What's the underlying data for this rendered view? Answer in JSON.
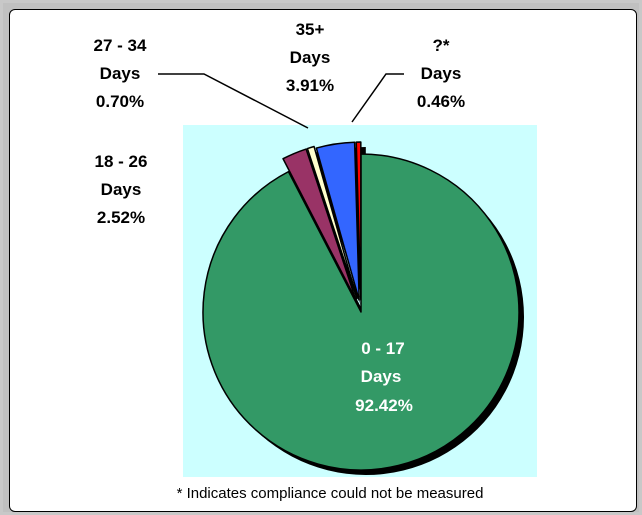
{
  "chart_data": {
    "type": "pie",
    "categories": [
      "0 - 17 Days",
      "18 - 26 Days",
      "27 - 34 Days",
      "35+ Days",
      "?* Days"
    ],
    "values": [
      92.42,
      2.52,
      0.7,
      3.91,
      0.46
    ],
    "slices": [
      {
        "line1": "0 - 17",
        "line2": "Days",
        "pct": "92.42%",
        "value": 92.42,
        "color": "#339966"
      },
      {
        "line1": "18 - 26",
        "line2": "Days",
        "pct": "2.52%",
        "value": 2.52,
        "color": "#993366"
      },
      {
        "line1": "27 - 34",
        "line2": "Days",
        "pct": "0.70%",
        "value": 0.7,
        "color": "#ffffcc"
      },
      {
        "line1": "35+",
        "line2": "Days",
        "pct": "3.91%",
        "value": 3.91,
        "color": "#3366ff"
      },
      {
        "line1": "?*",
        "line2": "Days",
        "pct": "0.46%",
        "value": 0.46,
        "color": "#ff0000"
      }
    ],
    "plot_area_color": "#ccffff",
    "footnote": "* Indicates compliance could not be measured"
  }
}
